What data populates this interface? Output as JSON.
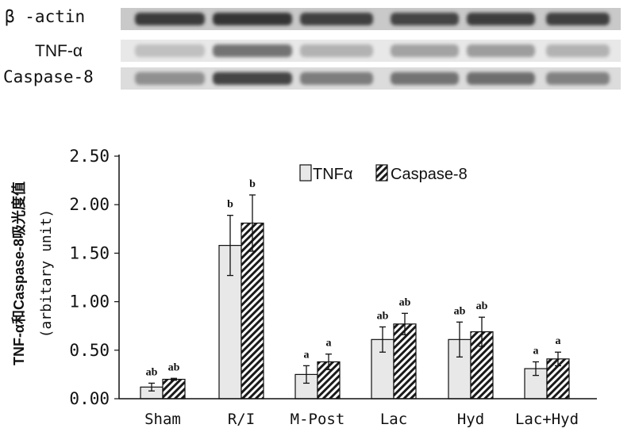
{
  "blot": {
    "rows": [
      {
        "label": "β -actin",
        "intensities": [
          0.85,
          0.88,
          0.82,
          0.8,
          0.84,
          0.82
        ]
      },
      {
        "label": "TNF-α",
        "intensities": [
          0.15,
          0.55,
          0.22,
          0.3,
          0.33,
          0.22
        ]
      },
      {
        "label": "Caspase-8",
        "intensities": [
          0.4,
          0.8,
          0.5,
          0.55,
          0.58,
          0.48
        ]
      }
    ]
  },
  "chart_data": {
    "type": "bar",
    "ylabel": "TNF-α和Caspase-8吸光度值",
    "ylabel2": "(arbitary unit)",
    "ylim": [
      0,
      2.5
    ],
    "yticks": [
      "0.00",
      "0.50",
      "1.00",
      "1.50",
      "2.00",
      "2.50"
    ],
    "categories": [
      "Sham",
      "R/I",
      "M-Post",
      "Lac",
      "Hyd",
      "Lac+Hyd"
    ],
    "legend_position": "top-right",
    "series": [
      {
        "name": "TNFα",
        "values": [
          0.12,
          1.58,
          0.25,
          0.61,
          0.61,
          0.31
        ],
        "errors": [
          0.04,
          0.31,
          0.09,
          0.13,
          0.18,
          0.07
        ],
        "labels": [
          "ab",
          "b",
          "a",
          "ab",
          "ab",
          "a"
        ]
      },
      {
        "name": "Caspase-8",
        "values": [
          0.2,
          1.81,
          0.38,
          0.77,
          0.69,
          0.41
        ],
        "errors": [
          0.01,
          0.29,
          0.08,
          0.11,
          0.15,
          0.07
        ],
        "labels": [
          "ab",
          "b",
          "a",
          "ab",
          "ab",
          "a"
        ]
      }
    ]
  }
}
